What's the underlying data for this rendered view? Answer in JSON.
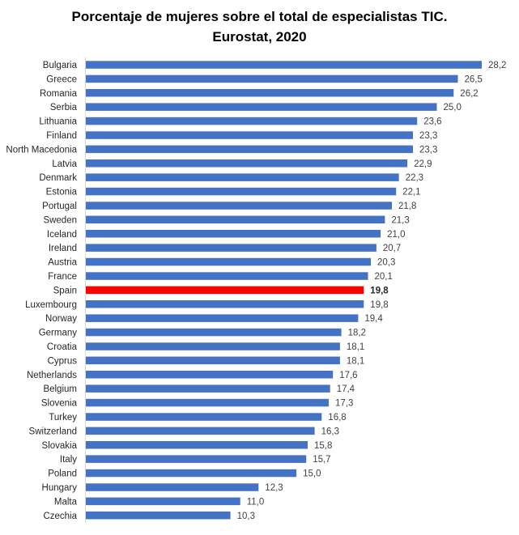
{
  "chart_data": {
    "type": "bar",
    "orientation": "horizontal",
    "title": "Porcentaje de mujeres sobre el total de especialistas TIC.",
    "subtitle": "Eurostat, 2020",
    "xlabel": "",
    "ylabel": "",
    "xlim": [
      0,
      28.2
    ],
    "grid": false,
    "legend": "none",
    "decimal_separator": ",",
    "colors": {
      "default": "#4472C4",
      "highlight": "#FF0000"
    },
    "highlight_category": "Spain",
    "categories": [
      "Bulgaria",
      "Greece",
      "Romania",
      "Serbia",
      "Lithuania",
      "Finland",
      "North Macedonia",
      "Latvia",
      "Denmark",
      "Estonia",
      "Portugal",
      "Sweden",
      "Iceland",
      "Ireland",
      "Austria",
      "France",
      "Spain",
      "Luxembourg",
      "Norway",
      "Germany",
      "Croatia",
      "Cyprus",
      "Netherlands",
      "Belgium",
      "Slovenia",
      "Turkey",
      "Switzerland",
      "Slovakia",
      "Italy",
      "Poland",
      "Hungary",
      "Malta",
      "Czechia"
    ],
    "values": [
      28.2,
      26.5,
      26.2,
      25.0,
      23.6,
      23.3,
      23.3,
      22.9,
      22.3,
      22.1,
      21.8,
      21.3,
      21.0,
      20.7,
      20.3,
      20.1,
      19.8,
      19.8,
      19.4,
      18.2,
      18.1,
      18.1,
      17.6,
      17.4,
      17.3,
      16.8,
      16.3,
      15.8,
      15.7,
      15.0,
      12.3,
      11.0,
      10.3
    ],
    "value_labels": [
      "28,2",
      "26,5",
      "26,2",
      "25,0",
      "23,6",
      "23,3",
      "23,3",
      "22,9",
      "22,3",
      "22,1",
      "21,8",
      "21,3",
      "21,0",
      "20,7",
      "20,3",
      "20,1",
      "19,8",
      "19,8",
      "19,4",
      "18,2",
      "18,1",
      "18,1",
      "17,6",
      "17,4",
      "17,3",
      "16,8",
      "16,3",
      "15,8",
      "15,7",
      "15,0",
      "12,3",
      "11,0",
      "10,3"
    ]
  }
}
